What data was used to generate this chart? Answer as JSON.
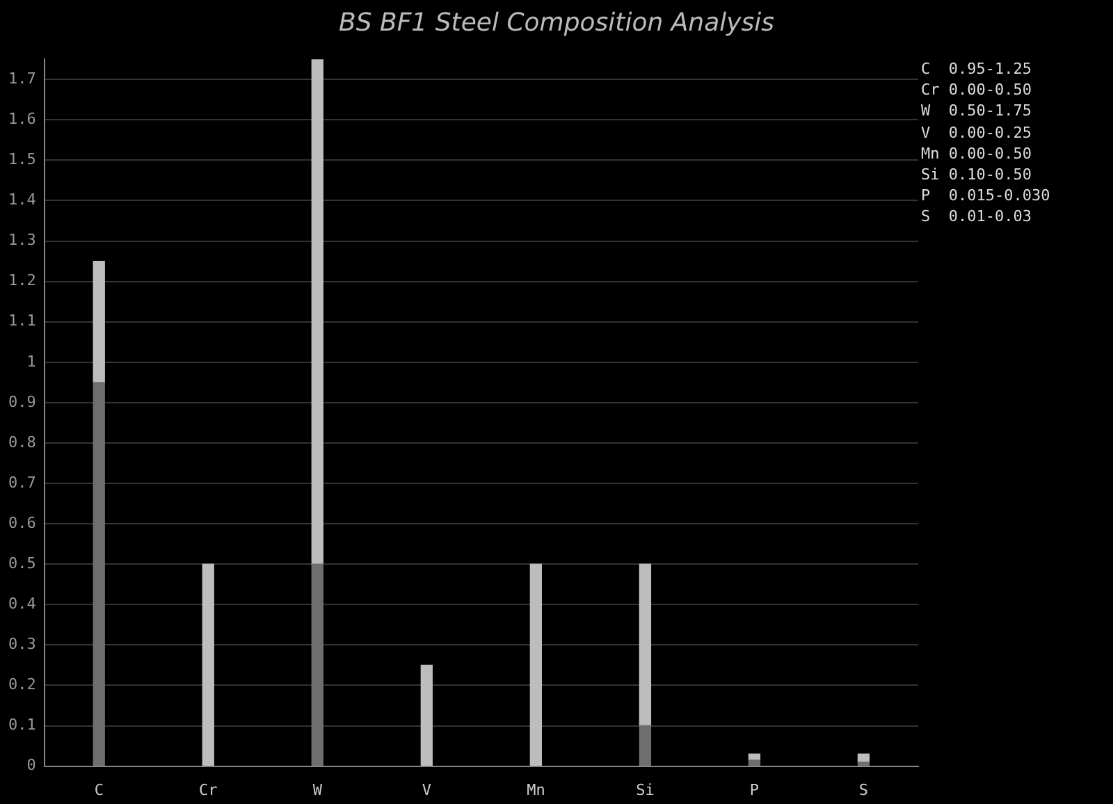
{
  "chart_data": {
    "type": "bar",
    "title": "BS BF1 Steel Composition Analysis",
    "categories": [
      "C",
      "Cr",
      "W",
      "V",
      "Mn",
      "Si",
      "P",
      "S"
    ],
    "stacked": true,
    "series": [
      {
        "color": "#6e6e6e",
        "values": [
          0.95,
          0,
          0.5,
          0,
          0,
          0.1,
          0.015,
          0.01
        ]
      },
      {
        "color": "#bdbdbd",
        "values": [
          0.3,
          0.5,
          1.25,
          0.25,
          0.5,
          0.4,
          0.015,
          0.02
        ]
      }
    ],
    "ylim": [
      0,
      1.75
    ],
    "yticks": [
      0,
      0.1,
      0.2,
      0.3,
      0.4,
      0.5,
      0.6,
      0.7,
      0.8,
      0.9,
      1,
      1.1,
      1.2,
      1.3,
      1.4,
      1.5,
      1.6,
      1.7
    ],
    "grid": "y",
    "legend": false,
    "annotations": [
      "C  0.95-1.25",
      "Cr 0.00-0.50",
      "W  0.50-1.75",
      "V  0.00-0.25",
      "Mn 0.00-0.50",
      "Si 0.10-0.50",
      "P  0.015-0.030",
      "S  0.01-0.03"
    ]
  }
}
